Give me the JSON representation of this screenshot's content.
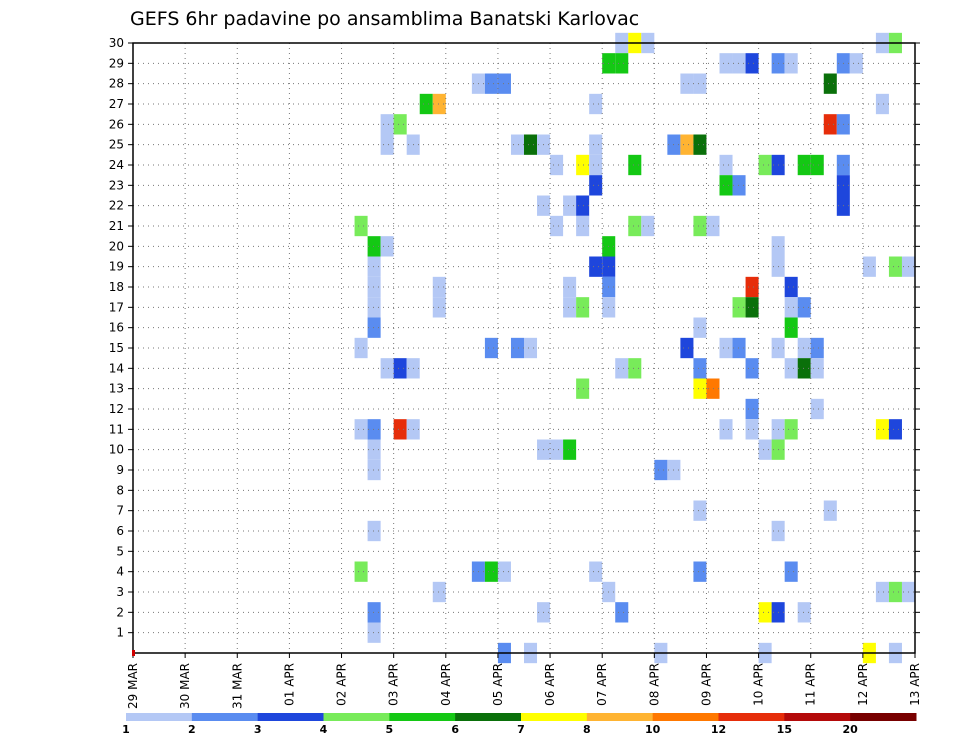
{
  "chart_data": {
    "type": "heatmap",
    "title": "GEFS 6hr padavine po ansamblima Banatski Karlovac",
    "xlabel": "",
    "ylabel": "",
    "y_members": [
      1,
      2,
      3,
      4,
      5,
      6,
      7,
      8,
      9,
      10,
      11,
      12,
      13,
      14,
      15,
      16,
      17,
      18,
      19,
      20,
      21,
      22,
      23,
      24,
      25,
      26,
      27,
      28,
      29,
      30
    ],
    "x_range_days": [
      0,
      15
    ],
    "x_step_hours": 6,
    "x_tick_labels": [
      "29 MAR",
      "30 MAR",
      "31 MAR",
      "01 APR",
      "02 APR",
      "03 APR",
      "04 APR",
      "05 APR",
      "06 APR",
      "07 APR",
      "08 APR",
      "09 APR",
      "10 APR",
      "11 APR",
      "12 APR",
      "13 APR"
    ],
    "legend": {
      "placement": "bottom",
      "bin_labels": [
        "1",
        "2",
        "3",
        "4",
        "5",
        "6",
        "7",
        "8",
        "10",
        "12",
        "15",
        "20"
      ],
      "colors": [
        "#b4c8f5",
        "#5a8cf0",
        "#1e46dc",
        "#78eb5a",
        "#14c814",
        "#0a700a",
        "#ffff00",
        "#ffb432",
        "#ff7800",
        "#e62d0a",
        "#b40a0a",
        "#780000"
      ]
    },
    "cells": [
      {
        "t": 9.25,
        "m": 30,
        "c": 0
      },
      {
        "t": 9.5,
        "m": 30,
        "c": 6
      },
      {
        "t": 9.75,
        "m": 30,
        "c": 0
      },
      {
        "t": 14.25,
        "m": 30,
        "c": 0
      },
      {
        "t": 14.5,
        "m": 30,
        "c": 3
      },
      {
        "t": 9.0,
        "m": 29,
        "c": 4
      },
      {
        "t": 9.25,
        "m": 29,
        "c": 4
      },
      {
        "t": 11.25,
        "m": 29,
        "c": 0
      },
      {
        "t": 11.5,
        "m": 29,
        "c": 0
      },
      {
        "t": 11.75,
        "m": 29,
        "c": 2
      },
      {
        "t": 12.25,
        "m": 29,
        "c": 1
      },
      {
        "t": 12.5,
        "m": 29,
        "c": 0
      },
      {
        "t": 13.5,
        "m": 29,
        "c": 1
      },
      {
        "t": 13.75,
        "m": 29,
        "c": 0
      },
      {
        "t": 6.5,
        "m": 28,
        "c": 0
      },
      {
        "t": 6.75,
        "m": 28,
        "c": 1
      },
      {
        "t": 7.0,
        "m": 28,
        "c": 1
      },
      {
        "t": 10.5,
        "m": 28,
        "c": 0
      },
      {
        "t": 10.75,
        "m": 28,
        "c": 0
      },
      {
        "t": 13.25,
        "m": 28,
        "c": 5
      },
      {
        "t": 5.5,
        "m": 27,
        "c": 4
      },
      {
        "t": 5.75,
        "m": 27,
        "c": 7
      },
      {
        "t": 8.75,
        "m": 27,
        "c": 0
      },
      {
        "t": 14.25,
        "m": 27,
        "c": 0
      },
      {
        "t": 4.75,
        "m": 26,
        "c": 0
      },
      {
        "t": 5.0,
        "m": 26,
        "c": 3
      },
      {
        "t": 13.25,
        "m": 26,
        "c": 9
      },
      {
        "t": 13.5,
        "m": 26,
        "c": 1
      },
      {
        "t": 4.75,
        "m": 25,
        "c": 0
      },
      {
        "t": 5.25,
        "m": 25,
        "c": 0
      },
      {
        "t": 7.25,
        "m": 25,
        "c": 0
      },
      {
        "t": 7.5,
        "m": 25,
        "c": 5
      },
      {
        "t": 7.75,
        "m": 25,
        "c": 0
      },
      {
        "t": 8.75,
        "m": 25,
        "c": 0
      },
      {
        "t": 10.25,
        "m": 25,
        "c": 1
      },
      {
        "t": 10.5,
        "m": 25,
        "c": 7
      },
      {
        "t": 10.75,
        "m": 25,
        "c": 5
      },
      {
        "t": 8.0,
        "m": 24,
        "c": 0
      },
      {
        "t": 8.5,
        "m": 24,
        "c": 6
      },
      {
        "t": 8.75,
        "m": 24,
        "c": 0
      },
      {
        "t": 9.5,
        "m": 24,
        "c": 4
      },
      {
        "t": 11.25,
        "m": 24,
        "c": 0
      },
      {
        "t": 12.0,
        "m": 24,
        "c": 3
      },
      {
        "t": 12.25,
        "m": 24,
        "c": 2
      },
      {
        "t": 12.75,
        "m": 24,
        "c": 4
      },
      {
        "t": 13.0,
        "m": 24,
        "c": 4
      },
      {
        "t": 13.5,
        "m": 24,
        "c": 1
      },
      {
        "t": 8.75,
        "m": 23,
        "c": 2
      },
      {
        "t": 11.25,
        "m": 23,
        "c": 4
      },
      {
        "t": 11.5,
        "m": 23,
        "c": 1
      },
      {
        "t": 13.5,
        "m": 23,
        "c": 2
      },
      {
        "t": 7.75,
        "m": 22,
        "c": 0
      },
      {
        "t": 8.25,
        "m": 22,
        "c": 0
      },
      {
        "t": 8.5,
        "m": 22,
        "c": 2
      },
      {
        "t": 13.5,
        "m": 22,
        "c": 2
      },
      {
        "t": 4.25,
        "m": 21,
        "c": 3
      },
      {
        "t": 8.0,
        "m": 21,
        "c": 0
      },
      {
        "t": 8.5,
        "m": 21,
        "c": 0
      },
      {
        "t": 9.5,
        "m": 21,
        "c": 3
      },
      {
        "t": 9.75,
        "m": 21,
        "c": 0
      },
      {
        "t": 10.75,
        "m": 21,
        "c": 3
      },
      {
        "t": 11.0,
        "m": 21,
        "c": 0
      },
      {
        "t": 4.5,
        "m": 20,
        "c": 4
      },
      {
        "t": 4.75,
        "m": 20,
        "c": 0
      },
      {
        "t": 9.0,
        "m": 20,
        "c": 4
      },
      {
        "t": 12.25,
        "m": 20,
        "c": 0
      },
      {
        "t": 4.5,
        "m": 19,
        "c": 0
      },
      {
        "t": 8.75,
        "m": 19,
        "c": 2
      },
      {
        "t": 9.0,
        "m": 19,
        "c": 2
      },
      {
        "t": 12.25,
        "m": 19,
        "c": 0
      },
      {
        "t": 14.0,
        "m": 19,
        "c": 0
      },
      {
        "t": 14.5,
        "m": 19,
        "c": 3
      },
      {
        "t": 14.75,
        "m": 19,
        "c": 0
      },
      {
        "t": 4.5,
        "m": 18,
        "c": 0
      },
      {
        "t": 5.75,
        "m": 18,
        "c": 0
      },
      {
        "t": 8.25,
        "m": 18,
        "c": 0
      },
      {
        "t": 9.0,
        "m": 18,
        "c": 1
      },
      {
        "t": 11.75,
        "m": 18,
        "c": 9
      },
      {
        "t": 12.5,
        "m": 18,
        "c": 2
      },
      {
        "t": 4.5,
        "m": 17,
        "c": 0
      },
      {
        "t": 5.75,
        "m": 17,
        "c": 0
      },
      {
        "t": 8.25,
        "m": 17,
        "c": 0
      },
      {
        "t": 8.5,
        "m": 17,
        "c": 3
      },
      {
        "t": 9.0,
        "m": 17,
        "c": 0
      },
      {
        "t": 11.5,
        "m": 17,
        "c": 3
      },
      {
        "t": 11.75,
        "m": 17,
        "c": 5
      },
      {
        "t": 12.5,
        "m": 17,
        "c": 0
      },
      {
        "t": 12.75,
        "m": 17,
        "c": 1
      },
      {
        "t": 4.5,
        "m": 16,
        "c": 1
      },
      {
        "t": 10.75,
        "m": 16,
        "c": 0
      },
      {
        "t": 12.5,
        "m": 16,
        "c": 4
      },
      {
        "t": 4.25,
        "m": 15,
        "c": 0
      },
      {
        "t": 6.75,
        "m": 15,
        "c": 1
      },
      {
        "t": 7.25,
        "m": 15,
        "c": 1
      },
      {
        "t": 7.5,
        "m": 15,
        "c": 0
      },
      {
        "t": 10.5,
        "m": 15,
        "c": 2
      },
      {
        "t": 11.25,
        "m": 15,
        "c": 0
      },
      {
        "t": 11.5,
        "m": 15,
        "c": 1
      },
      {
        "t": 12.25,
        "m": 15,
        "c": 0
      },
      {
        "t": 12.75,
        "m": 15,
        "c": 0
      },
      {
        "t": 13.0,
        "m": 15,
        "c": 1
      },
      {
        "t": 4.75,
        "m": 14,
        "c": 0
      },
      {
        "t": 5.0,
        "m": 14,
        "c": 2
      },
      {
        "t": 5.25,
        "m": 14,
        "c": 0
      },
      {
        "t": 9.25,
        "m": 14,
        "c": 0
      },
      {
        "t": 9.5,
        "m": 14,
        "c": 3
      },
      {
        "t": 10.75,
        "m": 14,
        "c": 1
      },
      {
        "t": 11.75,
        "m": 14,
        "c": 1
      },
      {
        "t": 12.5,
        "m": 14,
        "c": 0
      },
      {
        "t": 12.75,
        "m": 14,
        "c": 5
      },
      {
        "t": 13.0,
        "m": 14,
        "c": 0
      },
      {
        "t": 8.5,
        "m": 13,
        "c": 3
      },
      {
        "t": 10.75,
        "m": 13,
        "c": 6
      },
      {
        "t": 11.0,
        "m": 13,
        "c": 8
      },
      {
        "t": 11.75,
        "m": 12,
        "c": 1
      },
      {
        "t": 13.0,
        "m": 12,
        "c": 0
      },
      {
        "t": 4.25,
        "m": 11,
        "c": 0
      },
      {
        "t": 4.5,
        "m": 11,
        "c": 1
      },
      {
        "t": 5.0,
        "m": 11,
        "c": 9
      },
      {
        "t": 5.25,
        "m": 11,
        "c": 0
      },
      {
        "t": 11.25,
        "m": 11,
        "c": 0
      },
      {
        "t": 11.75,
        "m": 11,
        "c": 0
      },
      {
        "t": 12.25,
        "m": 11,
        "c": 0
      },
      {
        "t": 12.5,
        "m": 11,
        "c": 3
      },
      {
        "t": 14.25,
        "m": 11,
        "c": 6
      },
      {
        "t": 14.5,
        "m": 11,
        "c": 2
      },
      {
        "t": 4.5,
        "m": 10,
        "c": 0
      },
      {
        "t": 7.75,
        "m": 10,
        "c": 0
      },
      {
        "t": 8.0,
        "m": 10,
        "c": 0
      },
      {
        "t": 8.25,
        "m": 10,
        "c": 4
      },
      {
        "t": 12.0,
        "m": 10,
        "c": 0
      },
      {
        "t": 12.25,
        "m": 10,
        "c": 3
      },
      {
        "t": 4.5,
        "m": 9,
        "c": 0
      },
      {
        "t": 10.0,
        "m": 9,
        "c": 1
      },
      {
        "t": 10.25,
        "m": 9,
        "c": 0
      },
      {
        "t": 4.25,
        "m": 4,
        "c": 3
      },
      {
        "t": 6.5,
        "m": 4,
        "c": 1
      },
      {
        "t": 6.75,
        "m": 4,
        "c": 4
      },
      {
        "t": 7.0,
        "m": 4,
        "c": 0
      },
      {
        "t": 8.75,
        "m": 4,
        "c": 0
      },
      {
        "t": 10.75,
        "m": 4,
        "c": 1
      },
      {
        "t": 12.5,
        "m": 4,
        "c": 1
      },
      {
        "t": 10.75,
        "m": 7,
        "c": 0
      },
      {
        "t": 13.25,
        "m": 7,
        "c": 0
      },
      {
        "t": 4.5,
        "m": 6,
        "c": 0
      },
      {
        "t": 12.25,
        "m": 6,
        "c": 0
      },
      {
        "t": 5.75,
        "m": 3,
        "c": 0
      },
      {
        "t": 9.0,
        "m": 3,
        "c": 0
      },
      {
        "t": 14.25,
        "m": 3,
        "c": 0
      },
      {
        "t": 14.5,
        "m": 3,
        "c": 3
      },
      {
        "t": 14.75,
        "m": 3,
        "c": 0
      },
      {
        "t": 4.5,
        "m": 2,
        "c": 1
      },
      {
        "t": 7.75,
        "m": 2,
        "c": 0
      },
      {
        "t": 9.25,
        "m": 2,
        "c": 1
      },
      {
        "t": 12.0,
        "m": 2,
        "c": 6
      },
      {
        "t": 12.25,
        "m": 2,
        "c": 2
      },
      {
        "t": 12.75,
        "m": 2,
        "c": 0
      },
      {
        "t": 4.5,
        "m": 1,
        "c": 0
      },
      {
        "t": 7.0,
        "m": 0,
        "c": 1
      },
      {
        "t": 7.5,
        "m": 0,
        "c": 0
      },
      {
        "t": 10.0,
        "m": 0,
        "c": 0
      },
      {
        "t": 12.0,
        "m": 0,
        "c": 0
      },
      {
        "t": 14.0,
        "m": 0,
        "c": 6
      },
      {
        "t": 14.5,
        "m": 0,
        "c": 0
      }
    ]
  }
}
